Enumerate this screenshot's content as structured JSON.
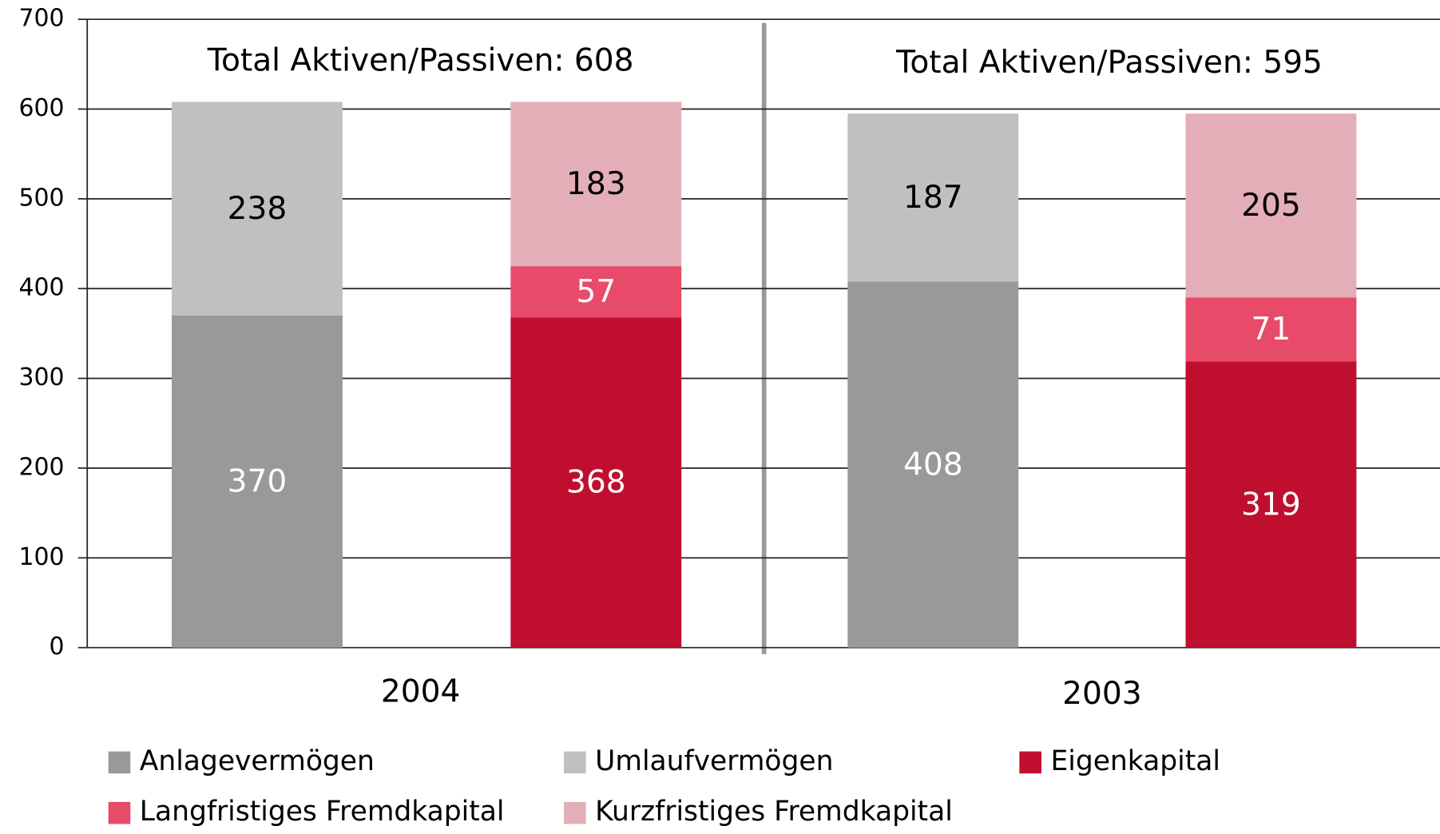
{
  "chart_data": {
    "type": "stacked_bar",
    "categories": [
      null,
      null,
      null,
      null
    ],
    "groups": [
      "2004",
      "2003"
    ],
    "annotations": [
      "Total Aktiven/Passiven: 608",
      "Total Aktiven/Passiven: 595"
    ],
    "series": [
      {
        "name": "Anlagevermögen",
        "color": "#999999",
        "label_color": "#ffffff",
        "values": [
          370,
          null,
          408,
          null
        ]
      },
      {
        "name": "Umlaufvermögen",
        "color": "#c0c0c0",
        "label_color": "#000000",
        "values": [
          238,
          null,
          187,
          null
        ]
      },
      {
        "name": "Eigenkapital",
        "color": "#c00f2e",
        "label_color": "#ffffff",
        "values": [
          null,
          368,
          null,
          319
        ]
      },
      {
        "name": "Langfristiges Fremdkapital",
        "color": "#e84a69",
        "label_color": "#ffffff",
        "values": [
          null,
          57,
          null,
          71
        ]
      },
      {
        "name": "Kurzfristiges Fremdkapital",
        "color": "#e3aeb8",
        "label_color": "#000000",
        "values": [
          null,
          183,
          null,
          205
        ]
      }
    ],
    "ylim": [
      0,
      700
    ],
    "yticks": [
      0,
      100,
      200,
      300,
      400,
      500,
      600,
      700
    ],
    "grid": true
  }
}
